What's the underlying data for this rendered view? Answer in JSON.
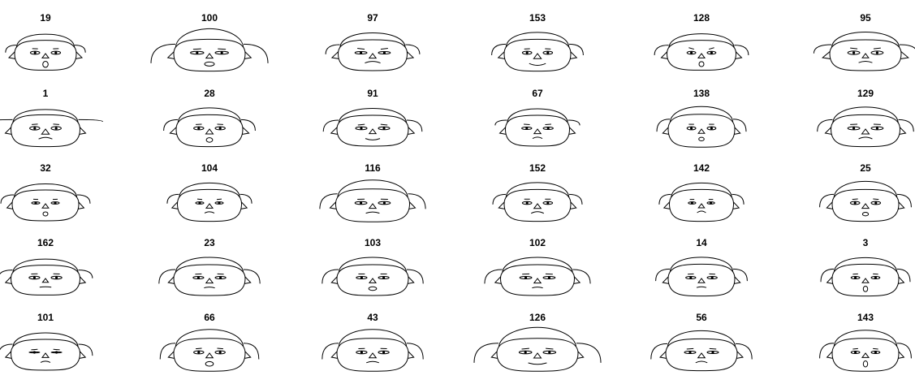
{
  "chart_data": {
    "type": "chernoff-faces",
    "title": "",
    "columns": 6,
    "rows": 5,
    "faces": [
      {
        "label": "19",
        "features": {
          "face_w": 0.4,
          "face_h": 0.45,
          "hair": 0.35,
          "hair_w": 0.4,
          "hair_droop": 0.35,
          "ears": 0.5,
          "eye_w": 0.35,
          "eye_h": 0.4,
          "brow": 0.55,
          "nose": 0.35,
          "mouth_w": 0.3,
          "mouth_curve": 0.5,
          "mouth_open": 0.9
        }
      },
      {
        "label": "100",
        "features": {
          "face_w": 0.6,
          "face_h": 0.55,
          "hair": 0.9,
          "hair_w": 1.0,
          "hair_droop": 0.95,
          "ears": 0.55,
          "eye_w": 0.65,
          "eye_h": 0.35,
          "brow": 0.4,
          "nose": 0.4,
          "mouth_w": 0.75,
          "mouth_curve": 0.75,
          "mouth_open": 0.5
        }
      },
      {
        "label": "97",
        "features": {
          "face_w": 0.55,
          "face_h": 0.5,
          "hair": 0.45,
          "hair_w": 0.55,
          "hair_droop": 0.45,
          "ears": 0.6,
          "eye_w": 0.55,
          "eye_h": 0.3,
          "brow": 0.7,
          "nose": 0.4,
          "mouth_w": 0.55,
          "mouth_curve": 0.1,
          "mouth_open": 0.0
        }
      },
      {
        "label": "153",
        "features": {
          "face_w": 0.5,
          "face_h": 0.55,
          "hair": 0.45,
          "hair_w": 0.55,
          "hair_droop": 0.5,
          "ears": 0.55,
          "eye_w": 0.35,
          "eye_h": 0.4,
          "brow": 0.45,
          "nose": 0.55,
          "mouth_w": 0.6,
          "mouth_curve": 0.95,
          "mouth_open": 0.0
        }
      },
      {
        "label": "128",
        "features": {
          "face_w": 0.55,
          "face_h": 0.45,
          "hair": 0.4,
          "hair_w": 0.55,
          "hair_droop": 0.5,
          "ears": 0.5,
          "eye_w": 0.3,
          "eye_h": 0.35,
          "brow": 0.8,
          "nose": 0.35,
          "mouth_w": 0.25,
          "mouth_curve": 0.5,
          "mouth_open": 0.7
        }
      },
      {
        "label": "95",
        "features": {
          "face_w": 0.6,
          "face_h": 0.5,
          "hair": 0.55,
          "hair_w": 0.7,
          "hair_droop": 0.4,
          "ears": 0.8,
          "eye_w": 0.55,
          "eye_h": 0.45,
          "brow": 0.65,
          "nose": 0.3,
          "mouth_w": 0.45,
          "mouth_curve": 0.15,
          "mouth_open": 0.0
        }
      },
      {
        "label": "1",
        "features": {
          "face_w": 0.55,
          "face_h": 0.55,
          "hair": 0.25,
          "hair_w": 1.0,
          "hair_droop": 0.0,
          "ears": 0.5,
          "eye_w": 0.4,
          "eye_h": 0.45,
          "brow": 0.4,
          "nose": 0.55,
          "mouth_w": 0.45,
          "mouth_curve": 0.1,
          "mouth_open": 0.0
        }
      },
      {
        "label": "28",
        "features": {
          "face_w": 0.5,
          "face_h": 0.55,
          "hair": 0.45,
          "hair_w": 0.55,
          "hair_droop": 0.5,
          "ears": 0.6,
          "eye_w": 0.4,
          "eye_h": 0.4,
          "brow": 0.45,
          "nose": 0.5,
          "mouth_w": 0.4,
          "mouth_curve": 0.3,
          "mouth_open": 0.6
        }
      },
      {
        "label": "91",
        "features": {
          "face_w": 0.6,
          "face_h": 0.5,
          "hair": 0.45,
          "hair_w": 0.6,
          "hair_droop": 0.55,
          "ears": 0.55,
          "eye_w": 0.5,
          "eye_h": 0.35,
          "brow": 0.35,
          "nose": 0.4,
          "mouth_w": 0.5,
          "mouth_curve": 0.85,
          "mouth_open": 0.0
        }
      },
      {
        "label": "67",
        "features": {
          "face_w": 0.45,
          "face_h": 0.5,
          "hair": 0.4,
          "hair_w": 0.45,
          "hair_droop": 0.2,
          "ears": 0.5,
          "eye_w": 0.4,
          "eye_h": 0.3,
          "brow": 0.6,
          "nose": 0.4,
          "mouth_w": 0.25,
          "mouth_curve": 0.15,
          "mouth_open": 0.0
        }
      },
      {
        "label": "138",
        "features": {
          "face_w": 0.5,
          "face_h": 0.6,
          "hair": 0.55,
          "hair_w": 0.5,
          "hair_droop": 0.55,
          "ears": 0.45,
          "eye_w": 0.3,
          "eye_h": 0.4,
          "brow": 0.5,
          "nose": 0.3,
          "mouth_w": 0.3,
          "mouth_curve": 0.2,
          "mouth_open": 0.4
        }
      },
      {
        "label": "129",
        "features": {
          "face_w": 0.55,
          "face_h": 0.55,
          "hair": 0.55,
          "hair_w": 0.6,
          "hair_droop": 0.55,
          "ears": 0.5,
          "eye_w": 0.55,
          "eye_h": 0.4,
          "brow": 0.45,
          "nose": 0.5,
          "mouth_w": 0.45,
          "mouth_curve": 0.1,
          "mouth_open": 0.0
        }
      },
      {
        "label": "32",
        "features": {
          "face_w": 0.5,
          "face_h": 0.5,
          "hair": 0.35,
          "hair_w": 0.5,
          "hair_droop": 0.4,
          "ears": 0.4,
          "eye_w": 0.25,
          "eye_h": 0.25,
          "brow": 0.55,
          "nose": 0.3,
          "mouth_w": 0.25,
          "mouth_curve": 0.5,
          "mouth_open": 0.5
        }
      },
      {
        "label": "104",
        "features": {
          "face_w": 0.45,
          "face_h": 0.55,
          "hair": 0.4,
          "hair_w": 0.45,
          "hair_droop": 0.4,
          "ears": 0.45,
          "eye_w": 0.25,
          "eye_h": 0.25,
          "brow": 0.6,
          "nose": 0.35,
          "mouth_w": 0.25,
          "mouth_curve": 0.2,
          "mouth_open": 0.3
        }
      },
      {
        "label": "116",
        "features": {
          "face_w": 0.65,
          "face_h": 0.6,
          "hair": 0.7,
          "hair_w": 0.7,
          "hair_droop": 0.7,
          "ears": 0.5,
          "eye_w": 0.55,
          "eye_h": 0.35,
          "brow": 0.45,
          "nose": 0.4,
          "mouth_w": 0.45,
          "mouth_curve": 0.2,
          "mouth_open": 0.0
        }
      },
      {
        "label": "152",
        "features": {
          "face_w": 0.5,
          "face_h": 0.55,
          "hair": 0.45,
          "hair_w": 0.5,
          "hair_droop": 0.45,
          "ears": 0.45,
          "eye_w": 0.35,
          "eye_h": 0.35,
          "brow": 0.5,
          "nose": 0.45,
          "mouth_w": 0.4,
          "mouth_curve": 0.1,
          "mouth_open": 0.0
        }
      },
      {
        "label": "142",
        "features": {
          "face_w": 0.45,
          "face_h": 0.55,
          "hair": 0.4,
          "hair_w": 0.45,
          "hair_droop": 0.45,
          "ears": 0.45,
          "eye_w": 0.2,
          "eye_h": 0.25,
          "brow": 0.5,
          "nose": 0.25,
          "mouth_w": 0.2,
          "mouth_curve": 0.1,
          "mouth_open": 0.0
        }
      },
      {
        "label": "25",
        "features": {
          "face_w": 0.5,
          "face_h": 0.55,
          "hair": 0.6,
          "hair_w": 0.55,
          "hair_droop": 0.6,
          "ears": 0.45,
          "eye_w": 0.35,
          "eye_h": 0.4,
          "brow": 0.4,
          "nose": 0.4,
          "mouth_w": 0.35,
          "mouth_curve": 0.15,
          "mouth_open": 0.4
        }
      },
      {
        "label": "162",
        "features": {
          "face_w": 0.55,
          "face_h": 0.45,
          "hair": 0.35,
          "hair_w": 0.55,
          "hair_droop": 0.4,
          "ears": 0.45,
          "eye_w": 0.45,
          "eye_h": 0.35,
          "brow": 0.45,
          "nose": 0.2,
          "mouth_w": 0.35,
          "mouth_curve": 0.4,
          "mouth_open": 0.0
        }
      },
      {
        "label": "23",
        "features": {
          "face_w": 0.6,
          "face_h": 0.5,
          "hair": 0.5,
          "hair_w": 0.65,
          "hair_droop": 0.7,
          "ears": 0.45,
          "eye_w": 0.45,
          "eye_h": 0.3,
          "brow": 0.45,
          "nose": 0.4,
          "mouth_w": 0.3,
          "mouth_curve": 0.3,
          "mouth_open": 0.0
        }
      },
      {
        "label": "103",
        "features": {
          "face_w": 0.6,
          "face_h": 0.5,
          "hair": 0.5,
          "hair_w": 0.65,
          "hair_droop": 0.7,
          "ears": 0.45,
          "eye_w": 0.45,
          "eye_h": 0.3,
          "brow": 0.5,
          "nose": 0.35,
          "mouth_w": 0.55,
          "mouth_curve": 0.15,
          "mouth_open": 0.4
        }
      },
      {
        "label": "102",
        "features": {
          "face_w": 0.65,
          "face_h": 0.5,
          "hair": 0.5,
          "hair_w": 0.7,
          "hair_droop": 0.7,
          "ears": 0.45,
          "eye_w": 0.55,
          "eye_h": 0.3,
          "brow": 0.45,
          "nose": 0.4,
          "mouth_w": 0.3,
          "mouth_curve": 0.3,
          "mouth_open": 0.0
        }
      },
      {
        "label": "14",
        "features": {
          "face_w": 0.5,
          "face_h": 0.55,
          "hair": 0.45,
          "hair_w": 0.55,
          "hair_droop": 0.55,
          "ears": 0.45,
          "eye_w": 0.4,
          "eye_h": 0.3,
          "brow": 0.45,
          "nose": 0.3,
          "mouth_w": 0.25,
          "mouth_curve": 0.3,
          "mouth_open": 0.0
        }
      },
      {
        "label": "3",
        "features": {
          "face_w": 0.5,
          "face_h": 0.55,
          "hair": 0.4,
          "hair_w": 0.5,
          "hair_droop": 0.6,
          "ears": 0.4,
          "eye_w": 0.3,
          "eye_h": 0.3,
          "brow": 0.45,
          "nose": 0.3,
          "mouth_w": 0.2,
          "mouth_curve": 0.5,
          "mouth_open": 0.8
        }
      },
      {
        "label": "101",
        "features": {
          "face_w": 0.55,
          "face_h": 0.5,
          "hair": 0.4,
          "hair_w": 0.55,
          "hair_droop": 0.55,
          "ears": 0.45,
          "eye_w": 0.45,
          "eye_h": 0.05,
          "brow": 0.4,
          "nose": 0.35,
          "mouth_w": 0.25,
          "mouth_curve": 0.2,
          "mouth_open": 0.0
        }
      },
      {
        "label": "66",
        "features": {
          "face_w": 0.6,
          "face_h": 0.6,
          "hair": 0.7,
          "hair_w": 0.6,
          "hair_droop": 0.75,
          "ears": 0.45,
          "eye_w": 0.4,
          "eye_h": 0.4,
          "brow": 0.4,
          "nose": 0.45,
          "mouth_w": 0.55,
          "mouth_curve": 0.9,
          "mouth_open": 0.6
        }
      },
      {
        "label": "43",
        "features": {
          "face_w": 0.6,
          "face_h": 0.6,
          "hair": 0.7,
          "hair_w": 0.65,
          "hair_droop": 0.75,
          "ears": 0.45,
          "eye_w": 0.45,
          "eye_h": 0.35,
          "brow": 0.45,
          "nose": 0.45,
          "mouth_w": 0.4,
          "mouth_curve": 0.2,
          "mouth_open": 0.0
        }
      },
      {
        "label": "126",
        "features": {
          "face_w": 0.8,
          "face_h": 0.6,
          "hair": 0.95,
          "hair_w": 1.0,
          "hair_droop": 0.95,
          "ears": 0.45,
          "eye_w": 0.6,
          "eye_h": 0.35,
          "brow": 0.35,
          "nose": 0.5,
          "mouth_w": 0.7,
          "mouth_curve": 0.85,
          "mouth_open": 0.0
        }
      },
      {
        "label": "56",
        "features": {
          "face_w": 0.6,
          "face_h": 0.55,
          "hair": 0.6,
          "hair_w": 0.65,
          "hair_droop": 0.75,
          "ears": 0.5,
          "eye_w": 0.5,
          "eye_h": 0.3,
          "brow": 0.4,
          "nose": 0.45,
          "mouth_w": 0.35,
          "mouth_curve": 0.15,
          "mouth_open": 0.0
        }
      },
      {
        "label": "143",
        "features": {
          "face_w": 0.5,
          "face_h": 0.6,
          "hair": 0.6,
          "hair_w": 0.55,
          "hair_droop": 0.7,
          "ears": 0.4,
          "eye_w": 0.3,
          "eye_h": 0.3,
          "brow": 0.4,
          "nose": 0.35,
          "mouth_w": 0.2,
          "mouth_curve": 0.5,
          "mouth_open": 0.9
        }
      }
    ]
  }
}
